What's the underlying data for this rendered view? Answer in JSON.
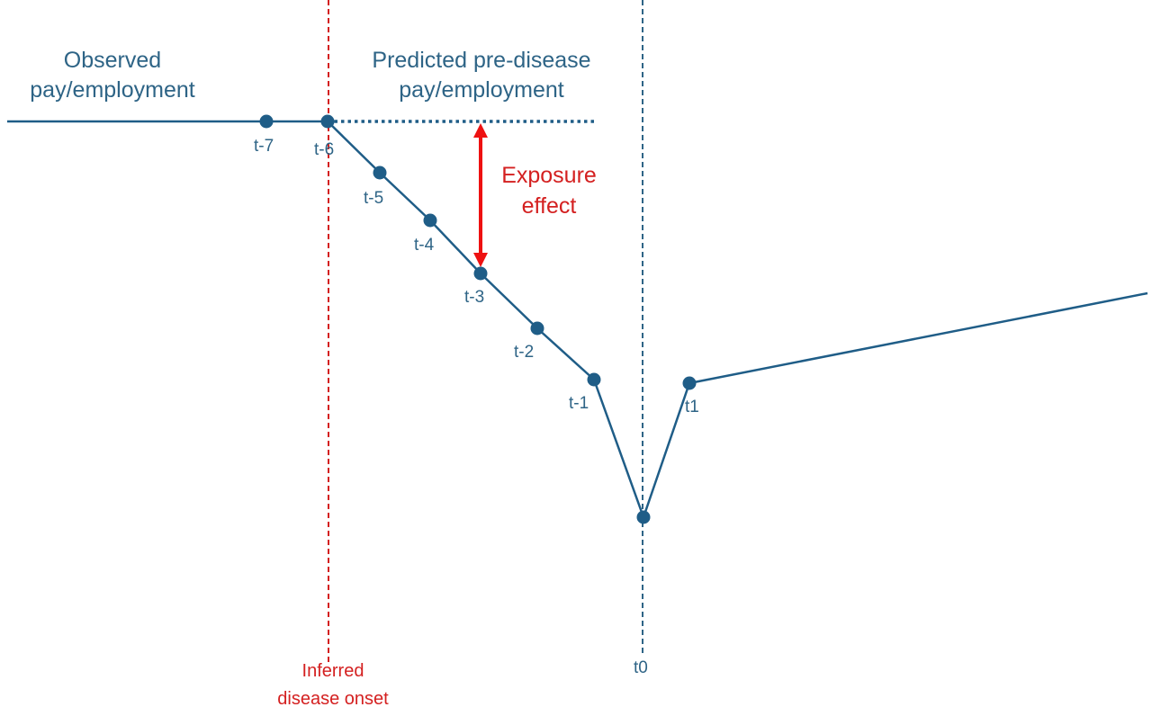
{
  "diagram": {
    "labels": {
      "observed_line1": "Observed",
      "observed_line2": "pay/employment",
      "predicted_line1": "Predicted pre-disease",
      "predicted_line2": "pay/employment",
      "exposure_line1": "Exposure",
      "exposure_line2": "effect",
      "onset_line1": "Inferred",
      "onset_line2": "disease onset",
      "t0_axis": "t0"
    },
    "points": [
      {
        "label": "t-7"
      },
      {
        "label": "t-6"
      },
      {
        "label": "t-5"
      },
      {
        "label": "t-4"
      },
      {
        "label": "t-3"
      },
      {
        "label": "t-2"
      },
      {
        "label": "t-1"
      },
      {
        "label": "t0"
      },
      {
        "label": "t1"
      }
    ],
    "colors": {
      "series": "#1f5d87",
      "observed_text": "#2e6486",
      "onset": "#d42020",
      "exposure_arrow": "#ee1111"
    }
  }
}
